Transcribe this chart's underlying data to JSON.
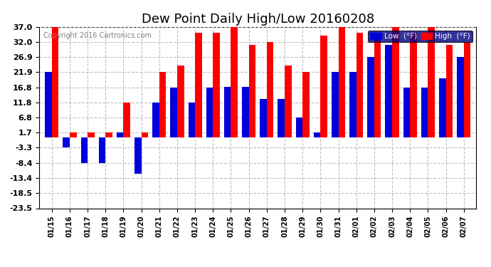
{
  "title": "Dew Point Daily High/Low 20160208",
  "copyright": "Copyright 2016 Cartronics.com",
  "categories": [
    "01/15",
    "01/16",
    "01/17",
    "01/18",
    "01/19",
    "01/20",
    "01/21",
    "01/22",
    "01/23",
    "01/24",
    "01/25",
    "01/26",
    "01/27",
    "01/28",
    "01/29",
    "01/30",
    "01/31",
    "02/01",
    "02/02",
    "02/03",
    "02/04",
    "02/05",
    "02/06",
    "02/07"
  ],
  "high_values": [
    37.0,
    1.7,
    1.7,
    1.7,
    11.8,
    1.7,
    21.9,
    24.1,
    35.1,
    35.1,
    37.0,
    30.9,
    32.0,
    24.1,
    21.9,
    34.0,
    37.0,
    35.1,
    35.1,
    37.0,
    35.1,
    37.0,
    30.9,
    32.0
  ],
  "low_values": [
    21.9,
    -3.3,
    -8.4,
    -8.4,
    1.7,
    -12.0,
    11.8,
    16.8,
    11.8,
    16.8,
    17.0,
    17.0,
    12.9,
    12.9,
    6.8,
    1.7,
    21.9,
    21.9,
    26.9,
    30.9,
    16.8,
    16.8,
    19.9,
    26.9
  ],
  "high_color": "#FF0000",
  "low_color": "#0000DD",
  "bg_color": "#FFFFFF",
  "plot_bg_color": "#FFFFFF",
  "grid_color": "#C0C0C0",
  "ylim_min": -23.5,
  "ylim_max": 37.0,
  "yticks": [
    37.0,
    32.0,
    26.9,
    21.9,
    16.8,
    11.8,
    6.8,
    1.7,
    -3.3,
    -8.4,
    -13.4,
    -18.5,
    -23.5
  ],
  "title_fontsize": 13,
  "bar_width": 0.38,
  "legend_labels": [
    "Low  (°F)",
    "High  (°F)"
  ]
}
